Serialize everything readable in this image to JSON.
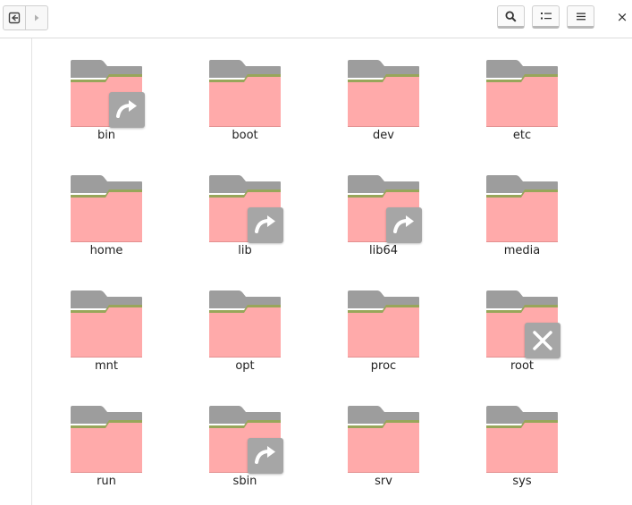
{
  "toolbar": {
    "back_icon": "back-arrow-icon",
    "forward_icon": "forward-arrow-icon",
    "search_icon": "search-icon",
    "view_icon": "list-view-icon",
    "menu_icon": "hamburger-menu-icon",
    "close_label": "×"
  },
  "colors": {
    "folder_front": "#ffaaaa",
    "folder_back": "#9d9d9d",
    "folder_band": "#98a65a",
    "emblem_bg": "#a6a6a6"
  },
  "files": {
    "items": [
      {
        "name": "bin",
        "emblem": "symlink"
      },
      {
        "name": "boot",
        "emblem": ""
      },
      {
        "name": "dev",
        "emblem": ""
      },
      {
        "name": "etc",
        "emblem": ""
      },
      {
        "name": "home",
        "emblem": ""
      },
      {
        "name": "lib",
        "emblem": "symlink"
      },
      {
        "name": "lib64",
        "emblem": "symlink"
      },
      {
        "name": "media",
        "emblem": ""
      },
      {
        "name": "mnt",
        "emblem": ""
      },
      {
        "name": "opt",
        "emblem": ""
      },
      {
        "name": "proc",
        "emblem": ""
      },
      {
        "name": "root",
        "emblem": "unreadable"
      },
      {
        "name": "run",
        "emblem": ""
      },
      {
        "name": "sbin",
        "emblem": "symlink"
      },
      {
        "name": "srv",
        "emblem": ""
      },
      {
        "name": "sys",
        "emblem": ""
      }
    ]
  }
}
